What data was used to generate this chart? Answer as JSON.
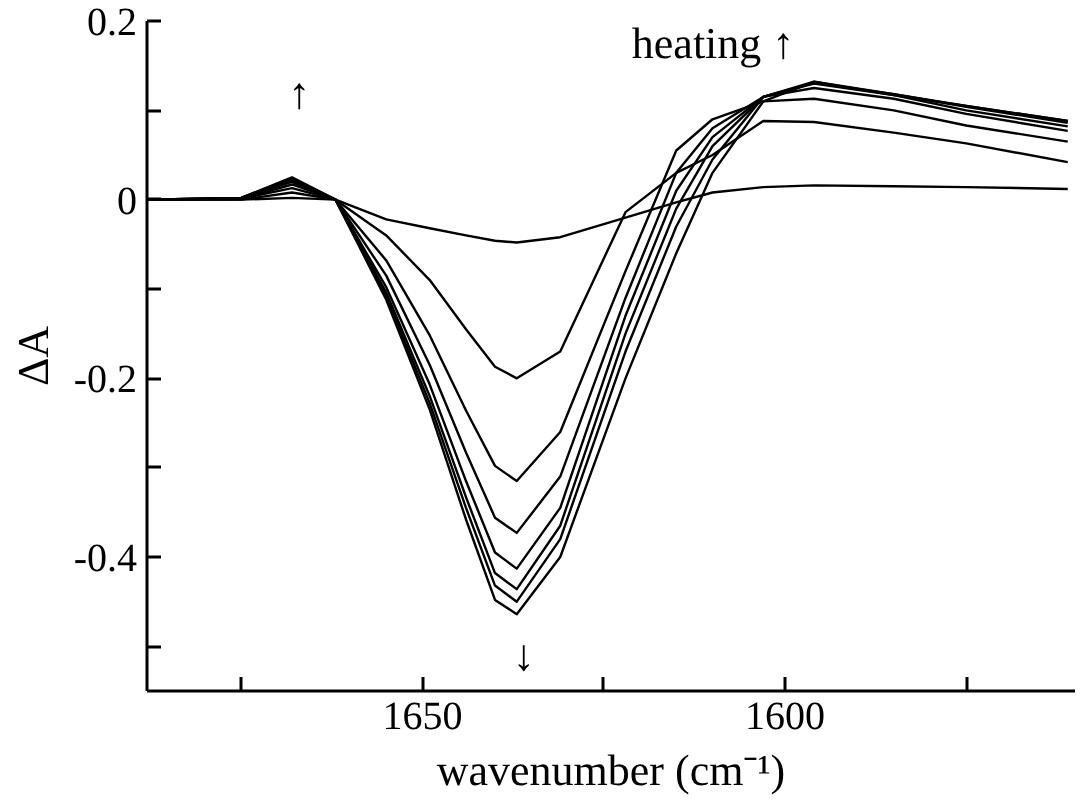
{
  "chart_data": {
    "type": "line",
    "xlabel": "wavenumber (cm⁻¹)",
    "ylabel": "ΔA",
    "x": [
      1688,
      1675,
      1668,
      1662,
      1655,
      1649,
      1644,
      1640,
      1637,
      1631,
      1622,
      1615,
      1610,
      1603,
      1596,
      1585,
      1575,
      1561
    ],
    "series": [
      {
        "color": "#000000",
        "values": [
          0,
          0,
          0.002,
          0,
          -0.022,
          -0.032,
          -0.04,
          -0.046,
          -0.048,
          -0.042,
          -0.02,
          -0.003,
          0.008,
          0.014,
          0.016,
          0.015,
          0.014,
          0.012
        ]
      },
      {
        "color": "#000000",
        "values": [
          0,
          0,
          0.008,
          0,
          -0.04,
          -0.09,
          -0.145,
          -0.187,
          -0.2,
          -0.17,
          -0.014,
          0.03,
          0.05,
          0.088,
          0.087,
          0.075,
          0.063,
          0.042
        ]
      },
      {
        "color": "#000000",
        "values": [
          0,
          0.001,
          0.013,
          0,
          -0.068,
          -0.152,
          -0.236,
          -0.298,
          -0.315,
          -0.26,
          -0.08,
          0.055,
          0.09,
          0.11,
          0.113,
          0.1,
          0.083,
          0.065
        ]
      },
      {
        "color": "#000000",
        "values": [
          0,
          0.001,
          0.017,
          0,
          -0.085,
          -0.185,
          -0.283,
          -0.356,
          -0.373,
          -0.31,
          -0.11,
          0.03,
          0.08,
          0.115,
          0.125,
          0.113,
          0.096,
          0.077
        ]
      },
      {
        "color": "#000000",
        "values": [
          0,
          0.002,
          0.02,
          0,
          -0.098,
          -0.207,
          -0.315,
          -0.395,
          -0.413,
          -0.345,
          -0.13,
          0.01,
          0.07,
          0.115,
          0.13,
          0.117,
          0.1,
          0.082
        ]
      },
      {
        "color": "#000000",
        "values": [
          0,
          0.002,
          0.022,
          0,
          -0.104,
          -0.22,
          -0.333,
          -0.418,
          -0.436,
          -0.365,
          -0.15,
          -0.01,
          0.06,
          0.115,
          0.131,
          0.118,
          0.104,
          0.086
        ]
      },
      {
        "color": "#000000",
        "values": [
          0,
          0.002,
          0.024,
          0,
          -0.108,
          -0.228,
          -0.345,
          -0.432,
          -0.45,
          -0.38,
          -0.17,
          -0.03,
          0.045,
          0.115,
          0.132,
          0.118,
          0.105,
          0.088
        ]
      },
      {
        "color": "#000000",
        "values": [
          0,
          0.002,
          0.025,
          0,
          -0.112,
          -0.235,
          -0.358,
          -0.448,
          -0.464,
          -0.4,
          -0.2,
          -0.06,
          0.03,
          0.11,
          0.132,
          0.117,
          0.105,
          0.088
        ]
      }
    ],
    "xlim": [
      1688,
      1560
    ],
    "ylim": [
      -0.55,
      0.2
    ],
    "xticks": [
      {
        "value": 1675,
        "label": null
      },
      1650,
      {
        "value": 1625,
        "label": null
      },
      1600,
      {
        "value": 1575,
        "label": null
      }
    ],
    "yticks": [
      {
        "value": -0.5,
        "label": null
      },
      -0.4,
      {
        "value": -0.3,
        "label": null
      },
      -0.2,
      {
        "value": -0.1,
        "label": null
      },
      0,
      {
        "value": 0.1,
        "label": null
      },
      0.2
    ],
    "annotations": [
      "↑",
      "heating ↑",
      "↓"
    ]
  }
}
